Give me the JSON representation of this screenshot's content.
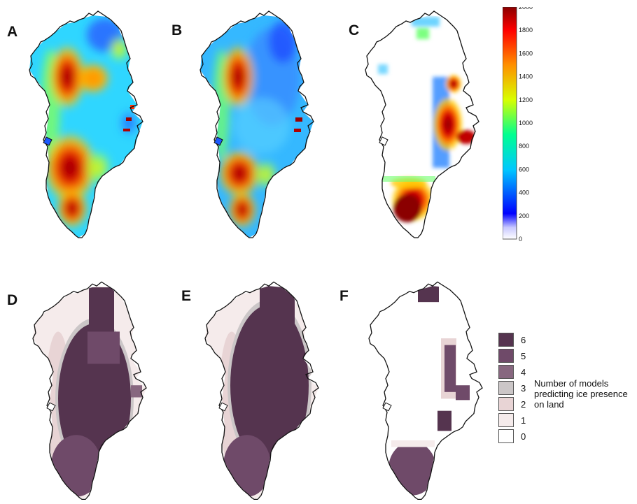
{
  "panels": [
    {
      "label": "A"
    },
    {
      "label": "B"
    },
    {
      "label": "C"
    },
    {
      "label": "D"
    },
    {
      "label": "E"
    },
    {
      "label": "F"
    }
  ],
  "colorbar": {
    "min": 0,
    "max": 2000,
    "ticks": [
      "2000",
      "1800",
      "1600",
      "1400",
      "1200",
      "1000",
      "800",
      "600",
      "400",
      "200",
      "0"
    ],
    "colormap": "jet"
  },
  "legend": {
    "items": [
      {
        "label": "6",
        "color": "#55344f"
      },
      {
        "label": "5",
        "color": "#6f4a69"
      },
      {
        "label": "4",
        "color": "#87677f"
      },
      {
        "label": "3",
        "color": "#cbc6c7"
      },
      {
        "label": "2",
        "color": "#e8d4d5"
      },
      {
        "label": "1",
        "color": "#f5ebeb"
      },
      {
        "label": "0",
        "color": "#ffffff"
      }
    ],
    "caption": "Number of models predicting ice presence on land"
  }
}
